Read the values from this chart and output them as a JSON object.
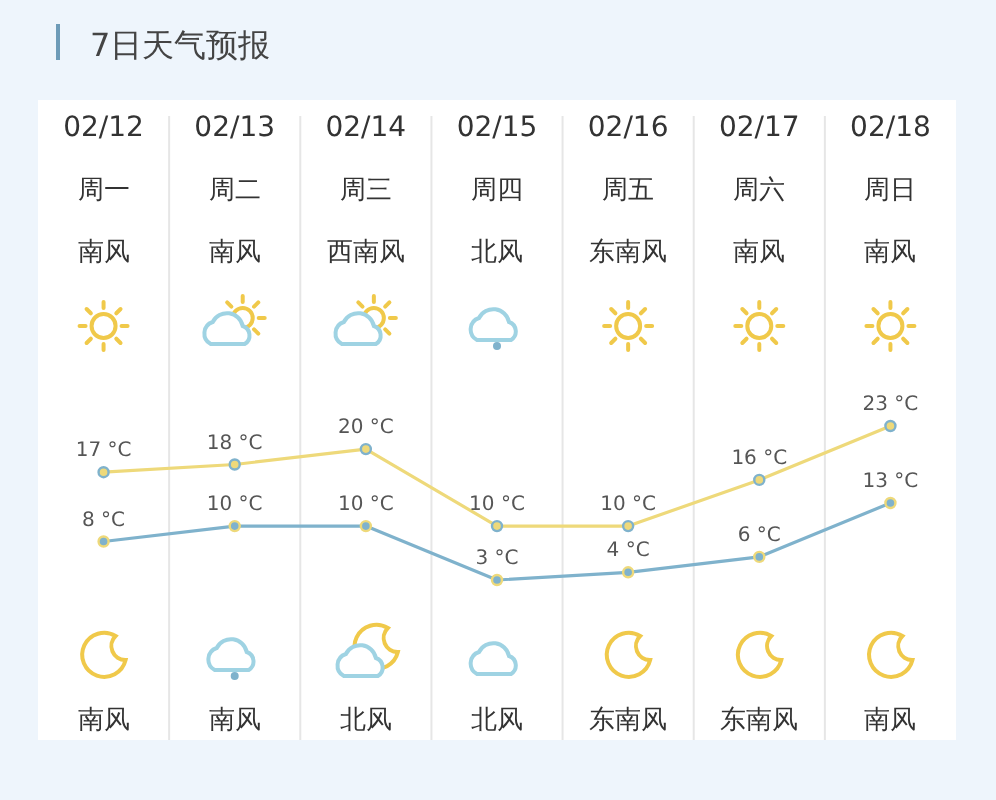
{
  "chart_data": {
    "type": "line",
    "title": "7日天气预报",
    "categories": [
      "02/12",
      "02/13",
      "02/14",
      "02/15",
      "02/16",
      "02/17",
      "02/18"
    ],
    "series": [
      {
        "color": "#eed97a",
        "values": [
          17,
          18,
          20,
          10,
          10,
          16,
          23
        ],
        "value_labels": [
          "17 °C",
          "18 °C",
          "20 °C",
          "10 °C",
          "10 °C",
          "16 °C",
          "23 °C"
        ]
      },
      {
        "color": "#7fb2cc",
        "values": [
          8,
          10,
          10,
          3,
          4,
          6,
          13
        ],
        "value_labels": [
          "8 °C",
          "10 °C",
          "10 °C",
          "3 °C",
          "4 °C",
          "6 °C",
          "13 °C"
        ]
      }
    ],
    "marker": "circle",
    "line_style": "solid",
    "annotations": [
      "周一",
      "周二",
      "周三",
      "周四",
      "周五",
      "周六",
      "周日",
      "南风",
      "南风",
      "西南风",
      "北风",
      "东南风",
      "南风",
      "南风",
      "南风",
      "南风",
      "北风",
      "北风",
      "东南风",
      "东南风",
      "南风"
    ]
  }
}
